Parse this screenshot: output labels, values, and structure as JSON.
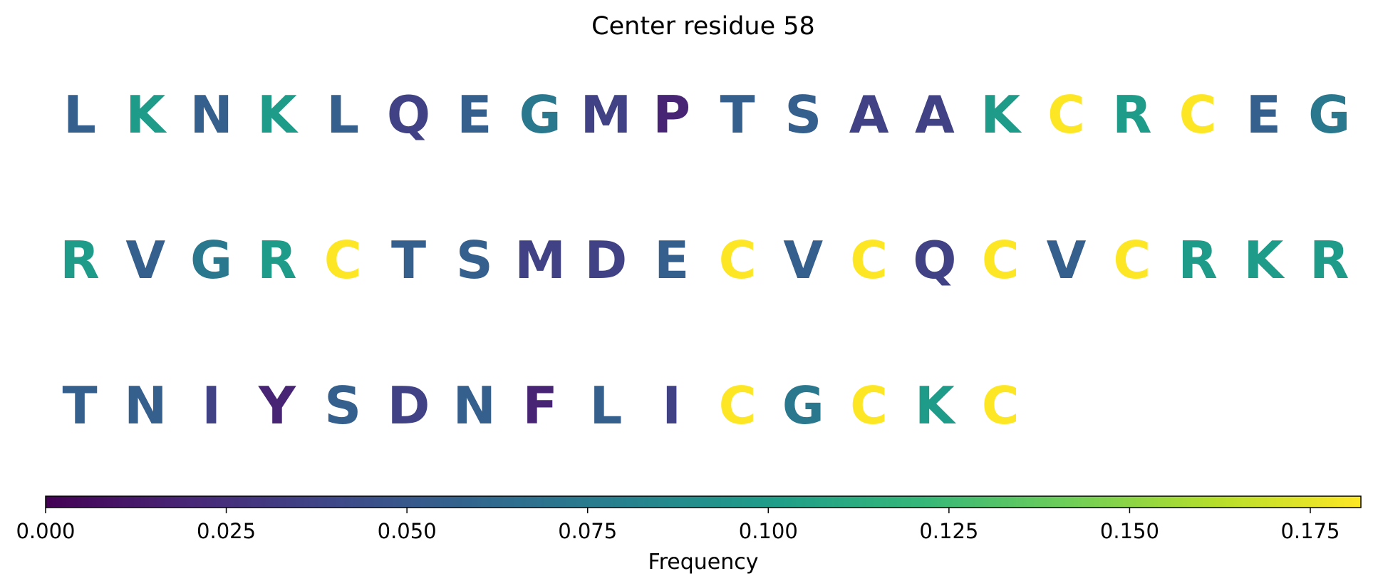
{
  "chart_data": {
    "type": "heatmap",
    "title": "Center residue 58",
    "sequence_rows": [
      [
        {
          "residue": "L",
          "frequency": 0.055
        },
        {
          "residue": "K",
          "frequency": 0.1
        },
        {
          "residue": "N",
          "frequency": 0.055
        },
        {
          "residue": "K",
          "frequency": 0.1
        },
        {
          "residue": "L",
          "frequency": 0.055
        },
        {
          "residue": "Q",
          "frequency": 0.036
        },
        {
          "residue": "E",
          "frequency": 0.055
        },
        {
          "residue": "G",
          "frequency": 0.073
        },
        {
          "residue": "M",
          "frequency": 0.036
        },
        {
          "residue": "P",
          "frequency": 0.018
        },
        {
          "residue": "T",
          "frequency": 0.055
        },
        {
          "residue": "S",
          "frequency": 0.055
        },
        {
          "residue": "A",
          "frequency": 0.036
        },
        {
          "residue": "A",
          "frequency": 0.036
        },
        {
          "residue": "K",
          "frequency": 0.1
        },
        {
          "residue": "C",
          "frequency": 0.182
        },
        {
          "residue": "R",
          "frequency": 0.1
        },
        {
          "residue": "C",
          "frequency": 0.182
        },
        {
          "residue": "E",
          "frequency": 0.055
        },
        {
          "residue": "G",
          "frequency": 0.073
        }
      ],
      [
        {
          "residue": "R",
          "frequency": 0.1
        },
        {
          "residue": "V",
          "frequency": 0.055
        },
        {
          "residue": "G",
          "frequency": 0.073
        },
        {
          "residue": "R",
          "frequency": 0.1
        },
        {
          "residue": "C",
          "frequency": 0.182
        },
        {
          "residue": "T",
          "frequency": 0.055
        },
        {
          "residue": "S",
          "frequency": 0.055
        },
        {
          "residue": "M",
          "frequency": 0.036
        },
        {
          "residue": "D",
          "frequency": 0.036
        },
        {
          "residue": "E",
          "frequency": 0.055
        },
        {
          "residue": "C",
          "frequency": 0.182
        },
        {
          "residue": "V",
          "frequency": 0.055
        },
        {
          "residue": "C",
          "frequency": 0.182
        },
        {
          "residue": "Q",
          "frequency": 0.036
        },
        {
          "residue": "C",
          "frequency": 0.182
        },
        {
          "residue": "V",
          "frequency": 0.055
        },
        {
          "residue": "C",
          "frequency": 0.182
        },
        {
          "residue": "R",
          "frequency": 0.1
        },
        {
          "residue": "K",
          "frequency": 0.1
        },
        {
          "residue": "R",
          "frequency": 0.1
        }
      ],
      [
        {
          "residue": "T",
          "frequency": 0.055
        },
        {
          "residue": "N",
          "frequency": 0.055
        },
        {
          "residue": "I",
          "frequency": 0.036
        },
        {
          "residue": "Y",
          "frequency": 0.018
        },
        {
          "residue": "S",
          "frequency": 0.055
        },
        {
          "residue": "D",
          "frequency": 0.036
        },
        {
          "residue": "N",
          "frequency": 0.055
        },
        {
          "residue": "F",
          "frequency": 0.018
        },
        {
          "residue": "L",
          "frequency": 0.055
        },
        {
          "residue": "I",
          "frequency": 0.036
        },
        {
          "residue": "C",
          "frequency": 0.182
        },
        {
          "residue": "G",
          "frequency": 0.073
        },
        {
          "residue": "C",
          "frequency": 0.182
        },
        {
          "residue": "K",
          "frequency": 0.1
        },
        {
          "residue": "C",
          "frequency": 0.182
        }
      ]
    ],
    "colorbar": {
      "colormap": "viridis",
      "label": "Frequency",
      "range": [
        0,
        0.182
      ],
      "ticks": [
        0,
        0.025,
        0.05,
        0.075,
        0.1,
        0.125,
        0.15,
        0.175
      ],
      "tick_labels": [
        "0.000",
        "0.025",
        "0.050",
        "0.075",
        "0.100",
        "0.125",
        "0.150",
        "0.175"
      ],
      "placement": "bottom"
    },
    "viridis_stops": [
      "#440154",
      "#482878",
      "#3e4989",
      "#31688e",
      "#26828e",
      "#1f9e89",
      "#35b779",
      "#6ece58",
      "#b5de2b",
      "#fde725"
    ]
  }
}
